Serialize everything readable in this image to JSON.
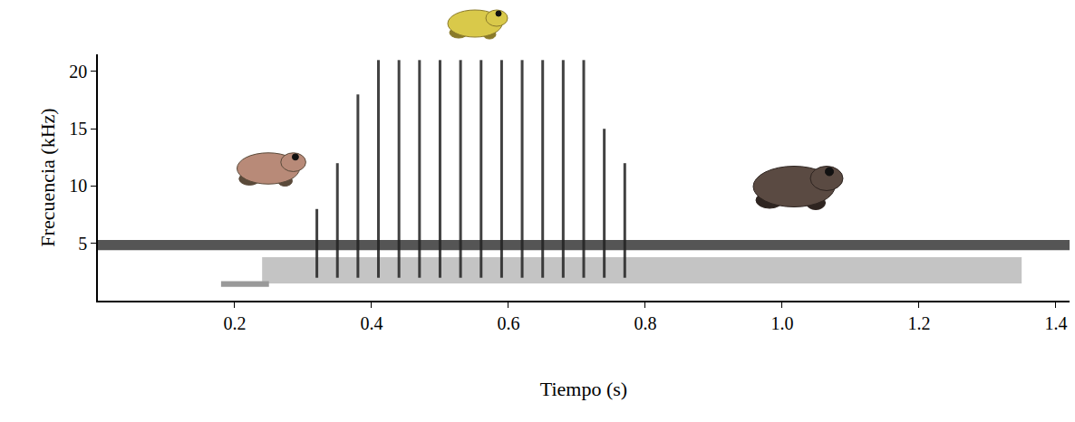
{
  "chart_data": {
    "type": "spectrogram",
    "xlabel": "Tiempo (s)",
    "ylabel": "Frecuencia (kHz)",
    "xlim": [
      0,
      1.42
    ],
    "ylim": [
      0,
      21.5
    ],
    "xticks": [
      0.2,
      0.4,
      0.6,
      0.8,
      {
        "value": 1,
        "label": "1.0"
      },
      1.2,
      1.4
    ],
    "yticks": [
      5,
      10,
      15,
      20
    ],
    "grid": false,
    "bands": [
      {
        "x": [
          0.24,
          1.35
        ],
        "y": [
          1.5,
          3.8
        ],
        "color": "#c4c4c4"
      },
      {
        "x": [
          0.18,
          0.25
        ],
        "y": [
          1.2,
          1.7
        ],
        "color": "#999999"
      },
      {
        "x": [
          0,
          1.42
        ],
        "y": [
          4.4,
          5.3
        ],
        "color": "#555555"
      }
    ],
    "pulses": {
      "x": [
        0.32,
        0.35,
        0.38,
        0.41,
        0.44,
        0.47,
        0.5,
        0.53,
        0.56,
        0.59,
        0.62,
        0.65,
        0.68,
        0.71,
        0.74,
        0.77
      ],
      "y_low": [
        2,
        2,
        2,
        2,
        2,
        2,
        2,
        2,
        2,
        2,
        2,
        2,
        2,
        2,
        2,
        2
      ],
      "y_high": [
        8,
        12,
        18,
        21,
        21,
        21,
        21,
        21,
        21,
        21,
        21,
        21,
        21,
        21,
        15,
        12
      ],
      "color": "#222222"
    }
  }
}
